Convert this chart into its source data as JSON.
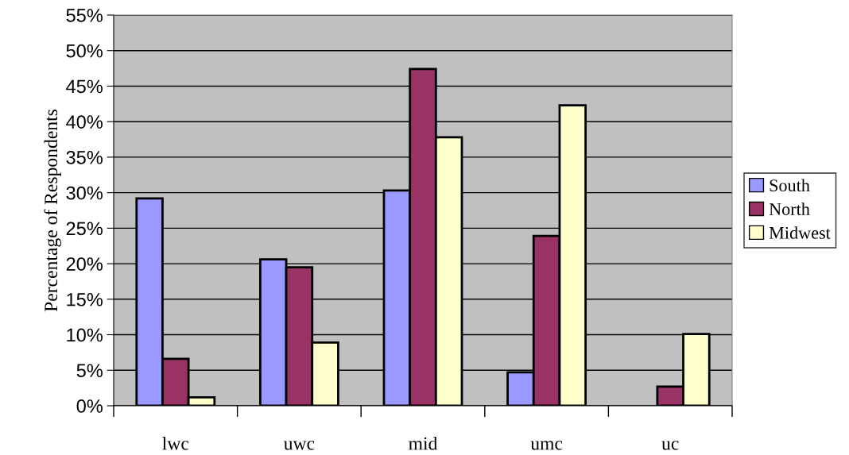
{
  "chart_data": {
    "type": "bar",
    "ylabel": "Percentage of Respondents",
    "categories": [
      "lwc",
      "uwc",
      "mid",
      "umc",
      "uc"
    ],
    "series": [
      {
        "name": "South",
        "color": "#9999ff",
        "values": [
          29.2,
          20.6,
          30.3,
          4.7,
          null
        ]
      },
      {
        "name": "North",
        "color": "#993366",
        "values": [
          6.6,
          19.5,
          47.4,
          23.9,
          2.7
        ]
      },
      {
        "name": "Midwest",
        "color": "#ffffcc",
        "values": [
          1.2,
          8.9,
          37.8,
          42.3,
          10.1
        ]
      }
    ],
    "ylim": [
      0,
      55
    ],
    "yticks": [
      {
        "value": 0,
        "label": "0%"
      },
      {
        "value": 5,
        "label": "5%"
      },
      {
        "value": 10,
        "label": "10%"
      },
      {
        "value": 15,
        "label": "15%"
      },
      {
        "value": 20,
        "label": "20%"
      },
      {
        "value": 25,
        "label": "25%"
      },
      {
        "value": 30,
        "label": "30%"
      },
      {
        "value": 35,
        "label": "35%"
      },
      {
        "value": 40,
        "label": "40%"
      },
      {
        "value": 45,
        "label": "45%"
      },
      {
        "value": 50,
        "label": "50%"
      },
      {
        "value": 55,
        "label": "55%"
      }
    ],
    "grid": "y",
    "legend": "right"
  }
}
